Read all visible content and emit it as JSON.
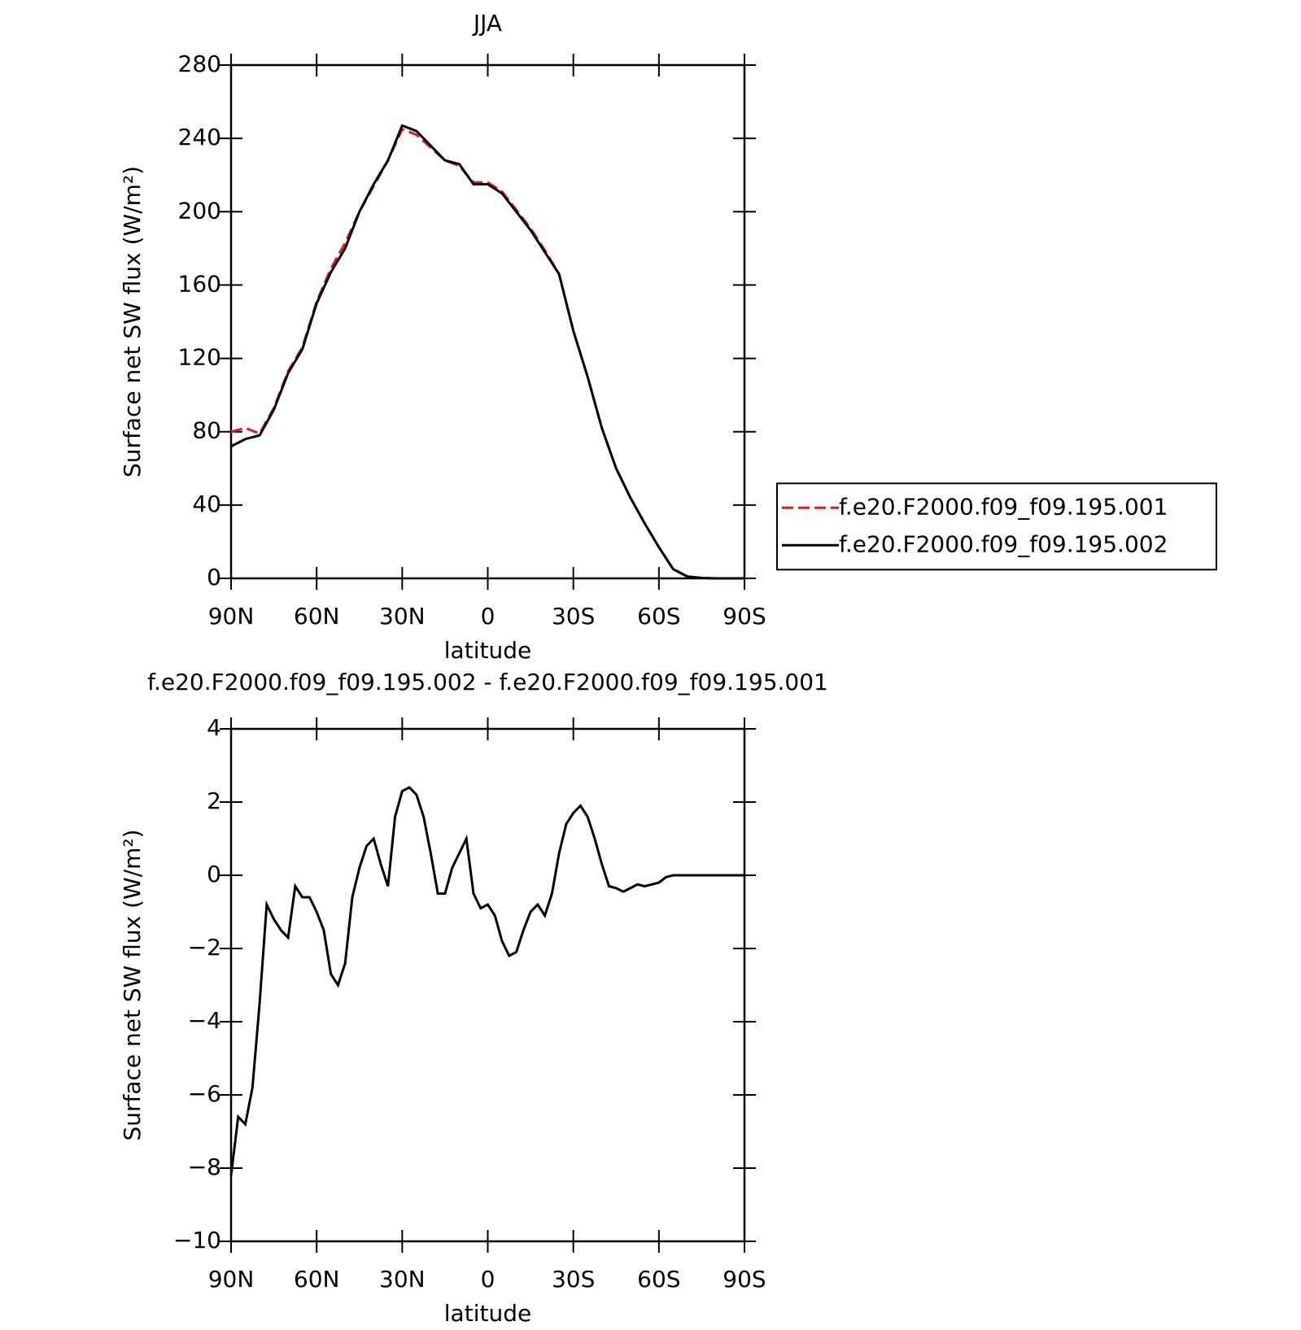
{
  "chart_data": [
    {
      "type": "line",
      "title": "JJA",
      "xlabel": "latitude",
      "ylabel": "Surface net SW flux (W/m²)",
      "x": [
        90,
        85,
        80,
        75,
        70,
        65,
        60,
        55,
        50,
        45,
        40,
        35,
        30,
        25,
        20,
        15,
        10,
        5,
        0,
        -5,
        -10,
        -15,
        -20,
        -25,
        -30,
        -35,
        -40,
        -45,
        -50,
        -55,
        -60,
        -65,
        -70,
        -75,
        -80,
        -85,
        -90
      ],
      "xlim": [
        90,
        -90
      ],
      "xticks": [
        {
          "value": 90,
          "label": "90N"
        },
        {
          "value": 60,
          "label": "60N"
        },
        {
          "value": 30,
          "label": "30N"
        },
        0,
        {
          "value": -30,
          "label": "30S"
        },
        {
          "value": -60,
          "label": "60S"
        },
        {
          "value": -90,
          "label": "90S"
        }
      ],
      "ylim": [
        0,
        280
      ],
      "yticks": [
        0,
        40,
        80,
        120,
        160,
        200,
        240,
        280
      ],
      "legend": "right",
      "series": [
        {
          "name": "f.e20.F2000.f09_f09.195.001",
          "color": "#e41a1c",
          "dash": true,
          "values": [
            80,
            82,
            79,
            93,
            113,
            126,
            151,
            169,
            183,
            200,
            214,
            228,
            245,
            242,
            235,
            228,
            225,
            216,
            216,
            211,
            201,
            191,
            179,
            166,
            135,
            110,
            82,
            60,
            44,
            30,
            17,
            5,
            1,
            0.2,
            0,
            0,
            0
          ]
        },
        {
          "name": "f.e20.F2000.f09_f09.195.002",
          "color": "#000000",
          "dash": false,
          "values": [
            72,
            76,
            78,
            92,
            112,
            125,
            150,
            167,
            180,
            200,
            215,
            228,
            247,
            244,
            236,
            228,
            226,
            215,
            215,
            210,
            200,
            190,
            178,
            166,
            135,
            110,
            82,
            60,
            44,
            30,
            17,
            5,
            1,
            0.2,
            0,
            0,
            0
          ]
        }
      ]
    },
    {
      "type": "line",
      "title": "f.e20.F2000.f09_f09.195.002 - f.e20.F2000.f09_f09.195.001",
      "xlabel": "latitude",
      "ylabel": "Surface net SW flux (W/m²)",
      "x": [
        90,
        87.5,
        85,
        82.5,
        80,
        77.5,
        75,
        72.5,
        70,
        67.5,
        65,
        62.5,
        60,
        57.5,
        55,
        52.5,
        50,
        47.5,
        45,
        42.5,
        40,
        37.5,
        35,
        32.5,
        30,
        27.5,
        25,
        22.5,
        20,
        17.5,
        15,
        12.5,
        10,
        7.5,
        5,
        2.5,
        0,
        -2.5,
        -5,
        -7.5,
        -10,
        -12.5,
        -15,
        -17.5,
        -20,
        -22.5,
        -25,
        -27.5,
        -30,
        -32.5,
        -35,
        -37.5,
        -40,
        -42.5,
        -45,
        -47.5,
        -50,
        -52.5,
        -55,
        -57.5,
        -60,
        -62.5,
        -65,
        -67.5,
        -70,
        -72.5,
        -75,
        -77.5,
        -80,
        -82.5,
        -85,
        -87.5,
        -90
      ],
      "xlim": [
        90,
        -90
      ],
      "xticks": [
        {
          "value": 90,
          "label": "90N"
        },
        {
          "value": 60,
          "label": "60N"
        },
        {
          "value": 30,
          "label": "30N"
        },
        0,
        {
          "value": -30,
          "label": "30S"
        },
        {
          "value": -60,
          "label": "60S"
        },
        {
          "value": -90,
          "label": "90S"
        }
      ],
      "ylim": [
        -10,
        4
      ],
      "yticks": [
        {
          "value": -10,
          "label": "−10"
        },
        {
          "value": -8,
          "label": "−8"
        },
        {
          "value": -6,
          "label": "−6"
        },
        {
          "value": -4,
          "label": "−4"
        },
        {
          "value": -2,
          "label": "−2"
        },
        0,
        2,
        4
      ],
      "series": [
        {
          "color": "#000000",
          "dash": false,
          "values": [
            -8.2,
            -6.6,
            -6.8,
            -5.8,
            -3.5,
            -0.8,
            -1.2,
            -1.5,
            -1.7,
            -0.3,
            -0.6,
            -0.6,
            -1.0,
            -1.5,
            -2.7,
            -3.0,
            -2.4,
            -0.6,
            0.2,
            0.8,
            1.0,
            0.3,
            -0.3,
            1.6,
            2.3,
            2.4,
            2.2,
            1.6,
            0.6,
            -0.5,
            -0.5,
            0.2,
            0.6,
            1.0,
            -0.5,
            -0.9,
            -0.8,
            -1.1,
            -1.8,
            -2.2,
            -2.1,
            -1.5,
            -1.0,
            -0.8,
            -1.1,
            -0.5,
            0.6,
            1.4,
            1.7,
            1.9,
            1.6,
            1.0,
            0.3,
            -0.3,
            -0.35,
            -0.45,
            -0.35,
            -0.25,
            -0.3,
            -0.25,
            -0.2,
            -0.05,
            0,
            0,
            0,
            0,
            0,
            0,
            0,
            0,
            0,
            0,
            0
          ]
        }
      ]
    }
  ]
}
